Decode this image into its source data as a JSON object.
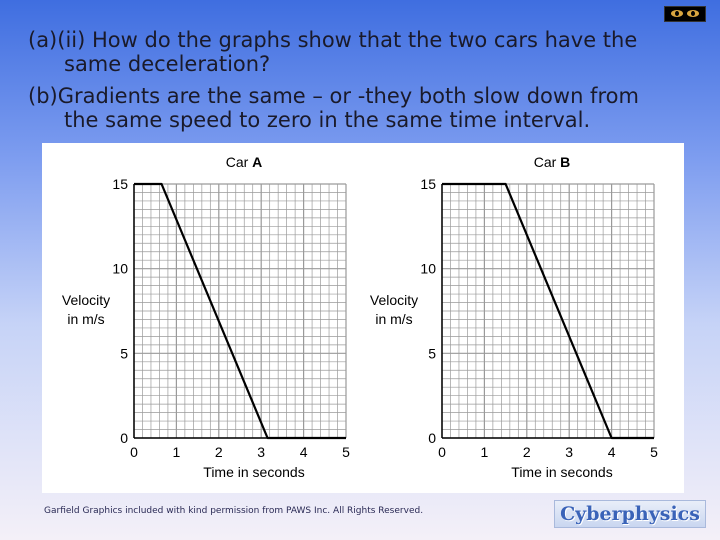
{
  "question": {
    "part_a_tag": "(a)",
    "part_ii_tag": "(ii)",
    "line1": "How do the graphs show that the two cars have the",
    "line2": "same deceleration?",
    "part_b_tag": "(b)",
    "answer1": "Gradients are the same – or -they both slow down from",
    "answer2": "the same speed to zero in the same time interval."
  },
  "footer": {
    "credit": "Garfield Graphics included with kind permission from PAWS Inc. All Rights Reserved.",
    "logo": "Cyberphysics"
  },
  "icons": {
    "eyes": "garfield-eyes-icon"
  },
  "colors": {
    "line": "#000000",
    "grid": "#9a9a9a",
    "text": "#1a1a2a"
  },
  "chart_data": [
    {
      "type": "line",
      "title_prefix": "Car ",
      "title_letter": "A",
      "xlabel": "Time in seconds",
      "ylabel_line1": "Velocity",
      "ylabel_line2": "in m/s",
      "xlim": [
        0,
        5
      ],
      "ylim": [
        0,
        15
      ],
      "xticks": [
        "0",
        "1",
        "2",
        "3",
        "4",
        "5"
      ],
      "yticks": [
        "0",
        "5",
        "10",
        "15"
      ],
      "grid": true,
      "x": [
        0,
        0.65,
        3.15,
        5
      ],
      "y": [
        15,
        15,
        0,
        0
      ]
    },
    {
      "type": "line",
      "title_prefix": "Car ",
      "title_letter": "B",
      "xlabel": "Time in seconds",
      "ylabel_line1": "Velocity",
      "ylabel_line2": "in m/s",
      "xlim": [
        0,
        5
      ],
      "ylim": [
        0,
        15
      ],
      "xticks": [
        "0",
        "1",
        "2",
        "3",
        "4",
        "5"
      ],
      "yticks": [
        "0",
        "5",
        "10",
        "15"
      ],
      "grid": true,
      "x": [
        0,
        1.5,
        4.0,
        5
      ],
      "y": [
        15,
        15,
        0,
        0
      ]
    }
  ]
}
